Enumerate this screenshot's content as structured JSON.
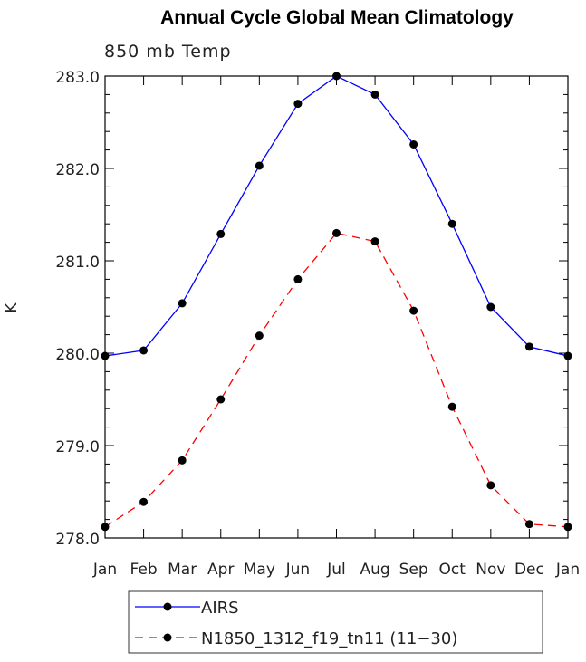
{
  "chart_data": {
    "type": "line",
    "title": "Annual Cycle Global Mean Climatology",
    "subtitle": "850 mb Temp",
    "xlabel": "",
    "ylabel": "K",
    "categories": [
      "Jan",
      "Feb",
      "Mar",
      "Apr",
      "May",
      "Jun",
      "Jul",
      "Aug",
      "Sep",
      "Oct",
      "Nov",
      "Dec",
      "Jan"
    ],
    "ylim": [
      278.0,
      283.0
    ],
    "yticks": [
      "278.0",
      "279.0",
      "280.0",
      "281.0",
      "282.0",
      "283.0"
    ],
    "series": [
      {
        "name": "AIRS",
        "color": "#0000ff",
        "dash": "solid",
        "values": [
          279.97,
          280.03,
          280.54,
          281.29,
          282.03,
          282.7,
          283.0,
          282.8,
          282.26,
          281.4,
          280.5,
          280.07,
          279.97
        ]
      },
      {
        "name": "N1850_1312_f19_tn11 (11−30)",
        "color": "#ff0000",
        "dash": "dashed",
        "values": [
          278.12,
          278.39,
          278.84,
          279.5,
          280.19,
          280.8,
          281.3,
          281.21,
          280.46,
          279.42,
          278.57,
          278.15,
          278.12
        ]
      }
    ],
    "grid": false,
    "legend_position": "bottom"
  }
}
